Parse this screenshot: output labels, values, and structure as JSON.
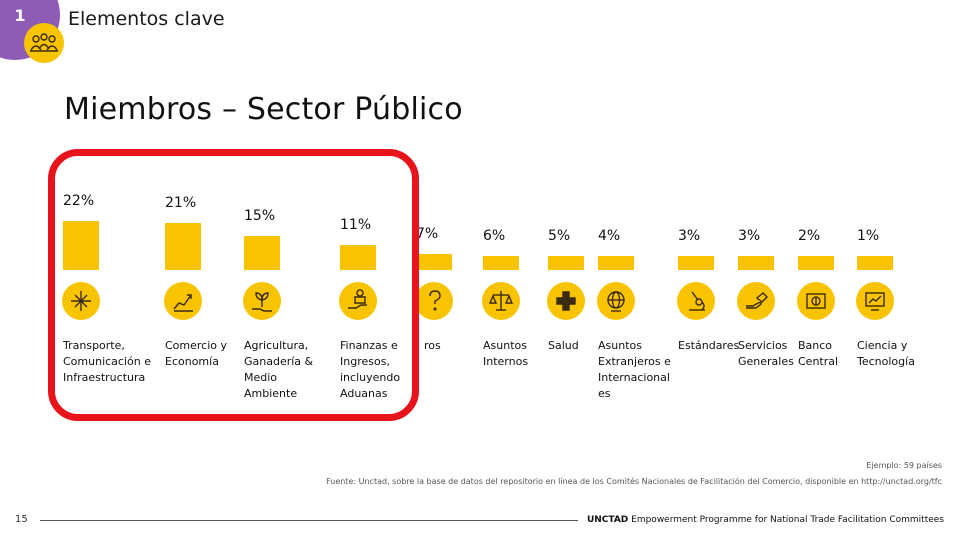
{
  "header": {
    "section_number": "1",
    "title": "Elementos clave",
    "icon": "team-icon"
  },
  "main": {
    "title": "Miembros – Sector Público"
  },
  "chart_data": {
    "type": "bar",
    "title": "",
    "xlabel": "",
    "ylabel": "",
    "value_unit": "%",
    "categories": [
      "Transporte,\nComunicación e\nInfraestructura",
      "Comercio y\nEconomía",
      "Agricultura,\nGanadería &\nMedio\nAmbiente",
      "Finanzas e\nIngresos,\nincluyendo\nAduanas",
      "Otros",
      "Asuntos\nInternos",
      "Salud",
      "Asuntos\nExtranjeros e\nInternacional\nes",
      "Estándares",
      "Servicios\nGenerales",
      "Banco\nCentral",
      "Ciencia y\nTecnología"
    ],
    "category_visible_text": [
      "Transporte,\nComunicación e\nInfraestructura",
      "Comercio y\nEconomía",
      "Agricultura,\nGanadería &\nMedio\nAmbiente",
      "Finanzas e\nIngresos,\nincluyendo\nAduanas",
      "ros",
      "Asuntos\nInternos",
      "Salud",
      "Asuntos\nExtranjeros e\nInternacional\nes",
      "Estándares",
      "Servicios\nGenerales",
      "Banco\nCentral",
      "Ciencia y\nTecnología"
    ],
    "values": [
      22,
      21,
      15,
      11,
      7,
      6,
      5,
      4,
      3,
      3,
      2,
      1
    ],
    "labels": [
      "22%",
      "21%",
      "15%",
      "11%",
      "7%",
      "6%",
      "5%",
      "4%",
      "3%",
      "3%",
      "2%",
      "1%"
    ],
    "icons": [
      "crossroads-icon",
      "growth-chart-icon",
      "plant-hand-icon",
      "finance-hand-icon",
      "question-icon",
      "scales-icon",
      "health-cross-icon",
      "globe-icon",
      "microscope-icon",
      "service-hand-icon",
      "banknote-icon",
      "tech-screen-icon"
    ],
    "highlighted_categories": [
      "Transporte,\nComunicación e\nInfraestructura",
      "Comercio y\nEconomía",
      "Agricultura,\nGanadería &\nMedio\nAmbiente",
      "Finanzas e\nIngresos,\nincluyendo\nAduanas"
    ],
    "colors": {
      "bar": "#f8c300",
      "highlight_border": "#e8141c"
    },
    "grid": false,
    "legend": "none"
  },
  "notes": {
    "sample": "Ejemplo: 59 países",
    "source": "Fuente: Unctad, sobre la base de datos del repositorio en línea de los Comités Nacionales de Facilitación del Comercio, disponible en http://unctad.org/tfc"
  },
  "footer": {
    "page_number": "15",
    "org": "UNCTAD",
    "program": " Empowerment Programme for National Trade Facilitation Committees"
  },
  "colors": {
    "accent": "#f8c300",
    "badge": "#8e5bb5",
    "highlight": "#e8141c"
  }
}
